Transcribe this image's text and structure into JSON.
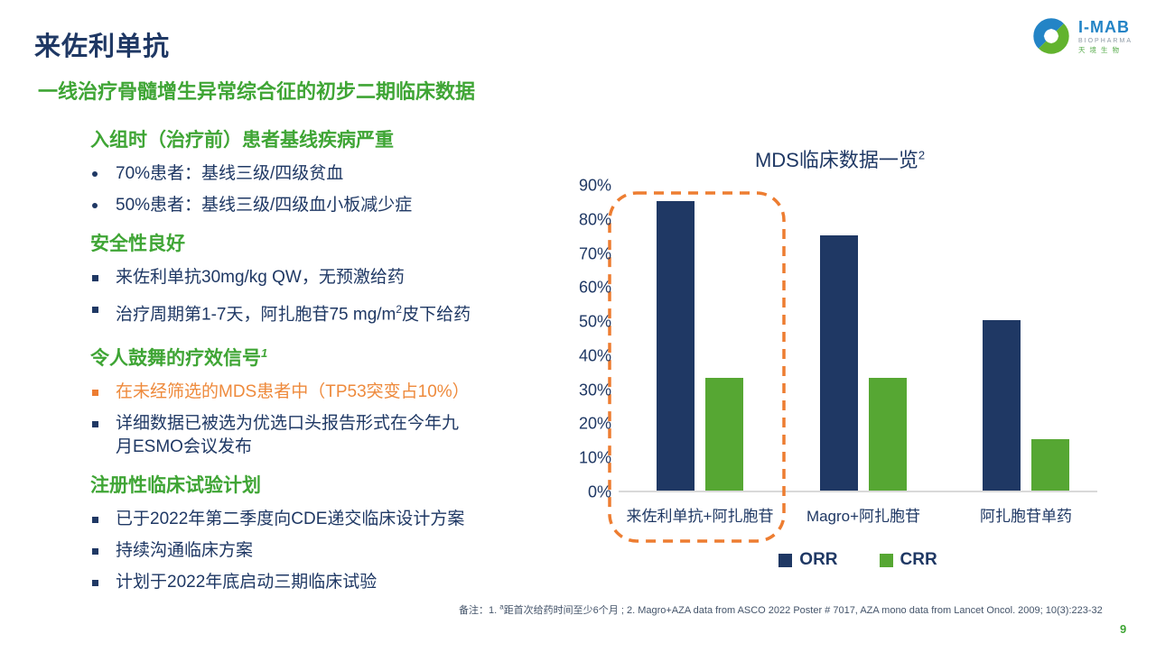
{
  "slide": {
    "title": "来佐利单抗",
    "subtitle": "一线治疗骨髓增生异常综合征的初步二期临床数据",
    "page_number": "9"
  },
  "logo": {
    "name": "I-MAB",
    "sub": "BIOPHARMA",
    "cn": "天境生物"
  },
  "left": {
    "sections": [
      {
        "heading": "入组时（治疗前）患者基线疾病严重",
        "bullets": [
          {
            "text": "70%患者：基线三级/四级贫血"
          },
          {
            "text": "50%患者：基线三级/四级血小板减少症"
          }
        ]
      },
      {
        "heading": "安全性良好",
        "bullets": [
          {
            "text": "来佐利单抗30mg/kg QW，无预激给药"
          },
          {
            "pre": "治疗周期第1-7天，阿扎胞苷75 mg/m",
            "sup": "2",
            "post": "皮下给药"
          }
        ]
      },
      {
        "heading": "令人鼓舞的疗效信号",
        "heading_sup": "1",
        "bullets": [
          {
            "text": "在未经筛选的MDS患者中（TP53突变占10%）",
            "style": "orange"
          },
          {
            "text": "详细数据已被选为优选口头报告形式在今年九\n月ESMO会议发布"
          }
        ]
      },
      {
        "heading": "注册性临床试验计划",
        "bullets": [
          {
            "text": "已于2022年第二季度向CDE递交临床设计方案"
          },
          {
            "text": "持续沟通临床方案"
          },
          {
            "text": "计划于2022年底启动三期临床试验"
          }
        ]
      }
    ]
  },
  "chart_data": {
    "type": "bar",
    "title": "MDS临床数据一览",
    "title_sup": "2",
    "categories": [
      "来佐利单抗+阿扎胞苷",
      "Magro+阿扎胞苷",
      "阿扎胞苷单药"
    ],
    "series": [
      {
        "name": "ORR",
        "color": "#1f3864",
        "values": [
          85,
          75,
          50
        ]
      },
      {
        "name": "CRR",
        "color": "#56a733",
        "values": [
          33,
          33,
          15
        ]
      }
    ],
    "xlabel": "",
    "ylabel": "",
    "ylim": [
      0,
      90
    ],
    "y_ticks": [
      "90%",
      "80%",
      "70%",
      "60%",
      "50%",
      "40%",
      "30%",
      "20%",
      "10%",
      "0%"
    ],
    "grid": false,
    "legend_position": "bottom",
    "highlight_group": "来佐利单抗+阿扎胞苷",
    "highlight_style": "orange dashed rounded box around first category"
  },
  "footnote": {
    "label": "备注：",
    "item1_pre": "1. ",
    "item1_sup": "a",
    "item1_text": "距首次给药时间至少6个月 ; 2. Magro+AZA data from ASCO 2022 Poster # 7017, AZA mono data from Lancet Oncol. 2009; 10(3):223-32"
  },
  "colors": {
    "navy": "#1f3864",
    "green": "#3fa535",
    "bar_green": "#56a733",
    "orange": "#ed7d31",
    "orange_text": "#ee8a3c",
    "footnote": "#44546a",
    "axis_gray": "#d9d9d9",
    "logo_blue": "#2384c6"
  }
}
